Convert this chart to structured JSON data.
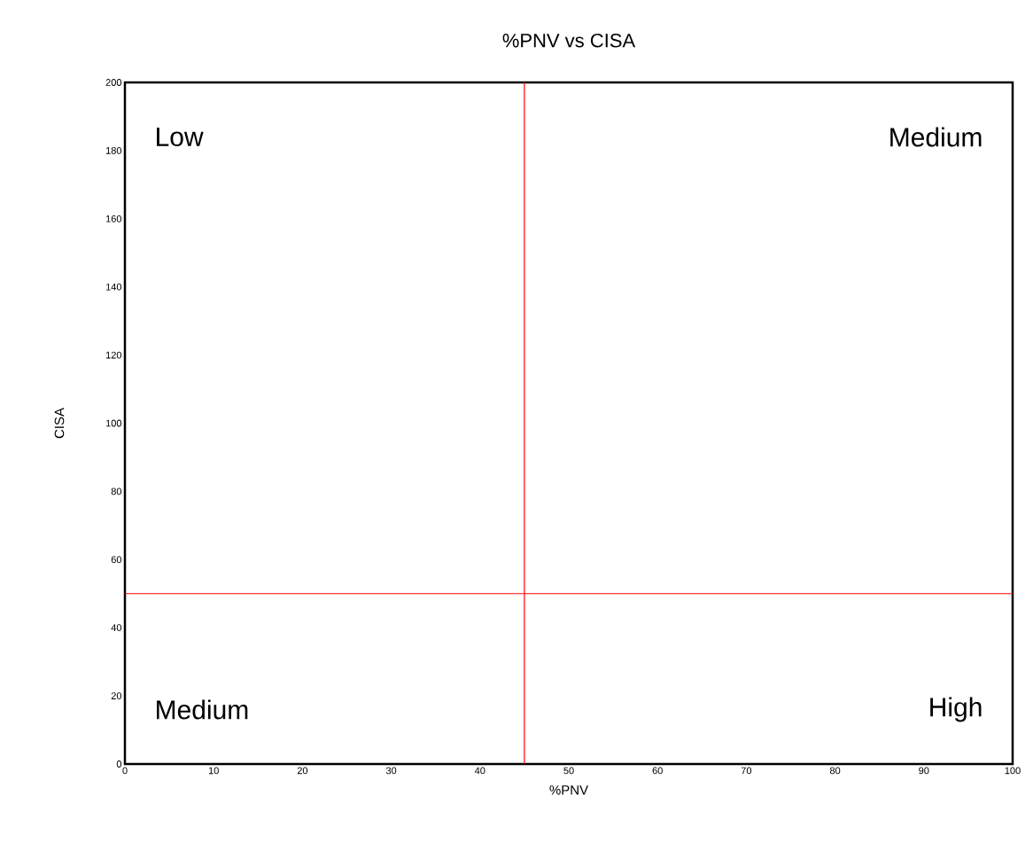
{
  "chart_data": {
    "type": "scatter",
    "title": "%PNV vs CISA",
    "xlabel": "%PNV",
    "ylabel": "CISA",
    "xlim": [
      0,
      100
    ],
    "ylim": [
      0,
      200
    ],
    "xticks": [
      0,
      10,
      20,
      30,
      40,
      50,
      60,
      70,
      80,
      90,
      100
    ],
    "yticks": [
      0,
      20,
      40,
      60,
      80,
      100,
      120,
      140,
      160,
      180,
      200
    ],
    "ref_lines": [
      {
        "axis": "x",
        "value": 45,
        "color": "#ff0000"
      },
      {
        "axis": "y",
        "value": 50,
        "color": "#ff0000"
      }
    ],
    "annotations": [
      "Low",
      "Medium",
      "Medium",
      "High"
    ]
  }
}
